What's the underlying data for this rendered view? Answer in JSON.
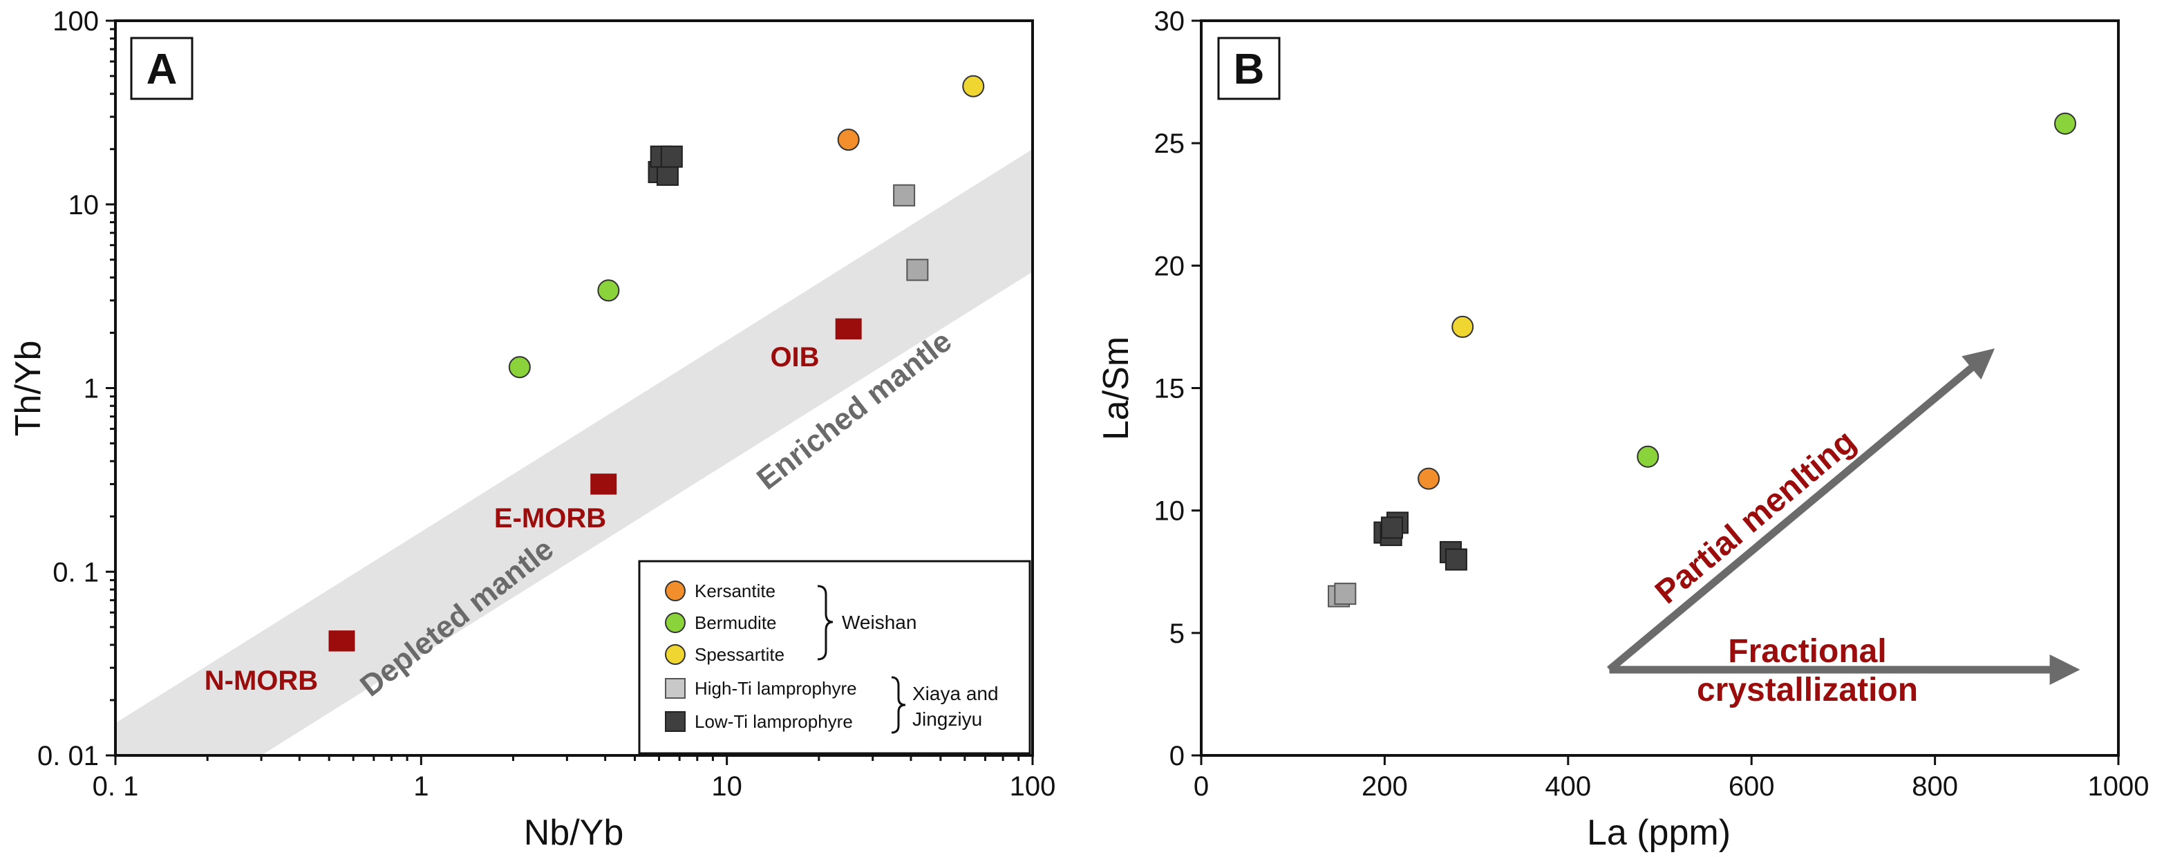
{
  "colors": {
    "kersantite": "#f28e2b",
    "bermudite": "#8bd33a",
    "spessartite": "#f0d630",
    "high_ti": "#a9a9a9",
    "low_ti": "#3f3f3f",
    "reference": "#9b0d0d",
    "band": "#e3e3e3",
    "arrow": "#6b6b6b"
  },
  "legend": {
    "entries": [
      {
        "label": "Kersantite",
        "shape": "circle",
        "color": "#f28e2b"
      },
      {
        "label": "Bermudite",
        "shape": "circle",
        "color": "#8bd33a"
      },
      {
        "label": "Spessartite",
        "shape": "circle",
        "color": "#f0d630"
      },
      {
        "label": "High-Ti lamprophyre",
        "shape": "square",
        "color": "#c8c8c8"
      },
      {
        "label": "Low-Ti lamprophyre",
        "shape": "square",
        "color": "#3f3f3f"
      }
    ],
    "groups": [
      {
        "label": "Weishan"
      },
      {
        "label": "Xiaya and",
        "label2": "Jingziyu"
      }
    ]
  },
  "chart_data": [
    {
      "panel": "A",
      "type": "scatter",
      "xscale": "log",
      "yscale": "log",
      "xlabel": "Nb/Yb",
      "ylabel": "Th/Yb",
      "xlim": [
        0.1,
        100
      ],
      "ylim": [
        0.01,
        100
      ],
      "xticks": [
        0.1,
        1,
        10,
        100
      ],
      "xtick_labels": [
        "0. 1",
        "1",
        "10",
        "100"
      ],
      "yticks": [
        0.01,
        0.1,
        1,
        10,
        100
      ],
      "ytick_labels": [
        "0. 01",
        "0. 1",
        "1",
        "10",
        "100"
      ],
      "band": {
        "upper": [
          [
            0.1,
            0.015
          ],
          [
            100,
            20
          ]
        ],
        "lower": [
          [
            0.3,
            0.01
          ],
          [
            100,
            4.3
          ]
        ]
      },
      "band_labels": [
        "Depleted mantle",
        "Enriched mantle"
      ],
      "reference_points": [
        {
          "label": "N-MORB",
          "x": 0.55,
          "y": 0.042
        },
        {
          "label": "E-MORB",
          "x": 3.95,
          "y": 0.3
        },
        {
          "label": "OIB",
          "x": 25,
          "y": 2.1
        }
      ],
      "series": [
        {
          "name": "Kersantite",
          "points": [
            [
              25,
              22.5
            ]
          ]
        },
        {
          "name": "Bermudite",
          "points": [
            [
              2.1,
              1.3
            ],
            [
              4.1,
              3.4
            ]
          ]
        },
        {
          "name": "Spessartite",
          "points": [
            [
              64,
              44
            ]
          ]
        },
        {
          "name": "High-Ti lamprophyre",
          "points": [
            [
              38,
              11.2
            ],
            [
              42,
              4.4
            ]
          ]
        },
        {
          "name": "Low-Ti lamprophyre",
          "points": [
            [
              6.0,
              15
            ],
            [
              6.4,
              14.5
            ],
            [
              6.1,
              18.2
            ],
            [
              6.6,
              18.2
            ]
          ]
        }
      ]
    },
    {
      "panel": "B",
      "type": "scatter",
      "xlabel": "La (ppm)",
      "ylabel": "La/Sm",
      "xlim": [
        0,
        1000
      ],
      "ylim": [
        0,
        30
      ],
      "xticks": [
        0,
        200,
        400,
        600,
        800,
        1000
      ],
      "yticks": [
        0,
        5,
        10,
        15,
        20,
        25,
        30
      ],
      "annotations": [
        {
          "label": "Partial menlting",
          "from": [
            445,
            3.5
          ],
          "to": [
            855,
            16.3
          ]
        },
        {
          "label": "Fractional",
          "label2": "crystallization",
          "from": [
            445,
            3.5
          ],
          "to": [
            945,
            3.5
          ]
        }
      ],
      "series": [
        {
          "name": "Kersantite",
          "points": [
            [
              248,
              11.3
            ]
          ]
        },
        {
          "name": "Bermudite",
          "points": [
            [
              487,
              12.2
            ],
            [
              942,
              25.8
            ]
          ]
        },
        {
          "name": "Spessartite",
          "points": [
            [
              285,
              17.5
            ]
          ]
        },
        {
          "name": "High-Ti lamprophyre",
          "points": [
            [
              150,
              6.5
            ],
            [
              157,
              6.6
            ]
          ]
        },
        {
          "name": "Low-Ti lamprophyre",
          "points": [
            [
              200,
              9.1
            ],
            [
              207,
              9.0
            ],
            [
              214,
              9.5
            ],
            [
              208,
              9.3
            ],
            [
              272,
              8.3
            ],
            [
              278,
              8.0
            ]
          ]
        }
      ]
    }
  ]
}
